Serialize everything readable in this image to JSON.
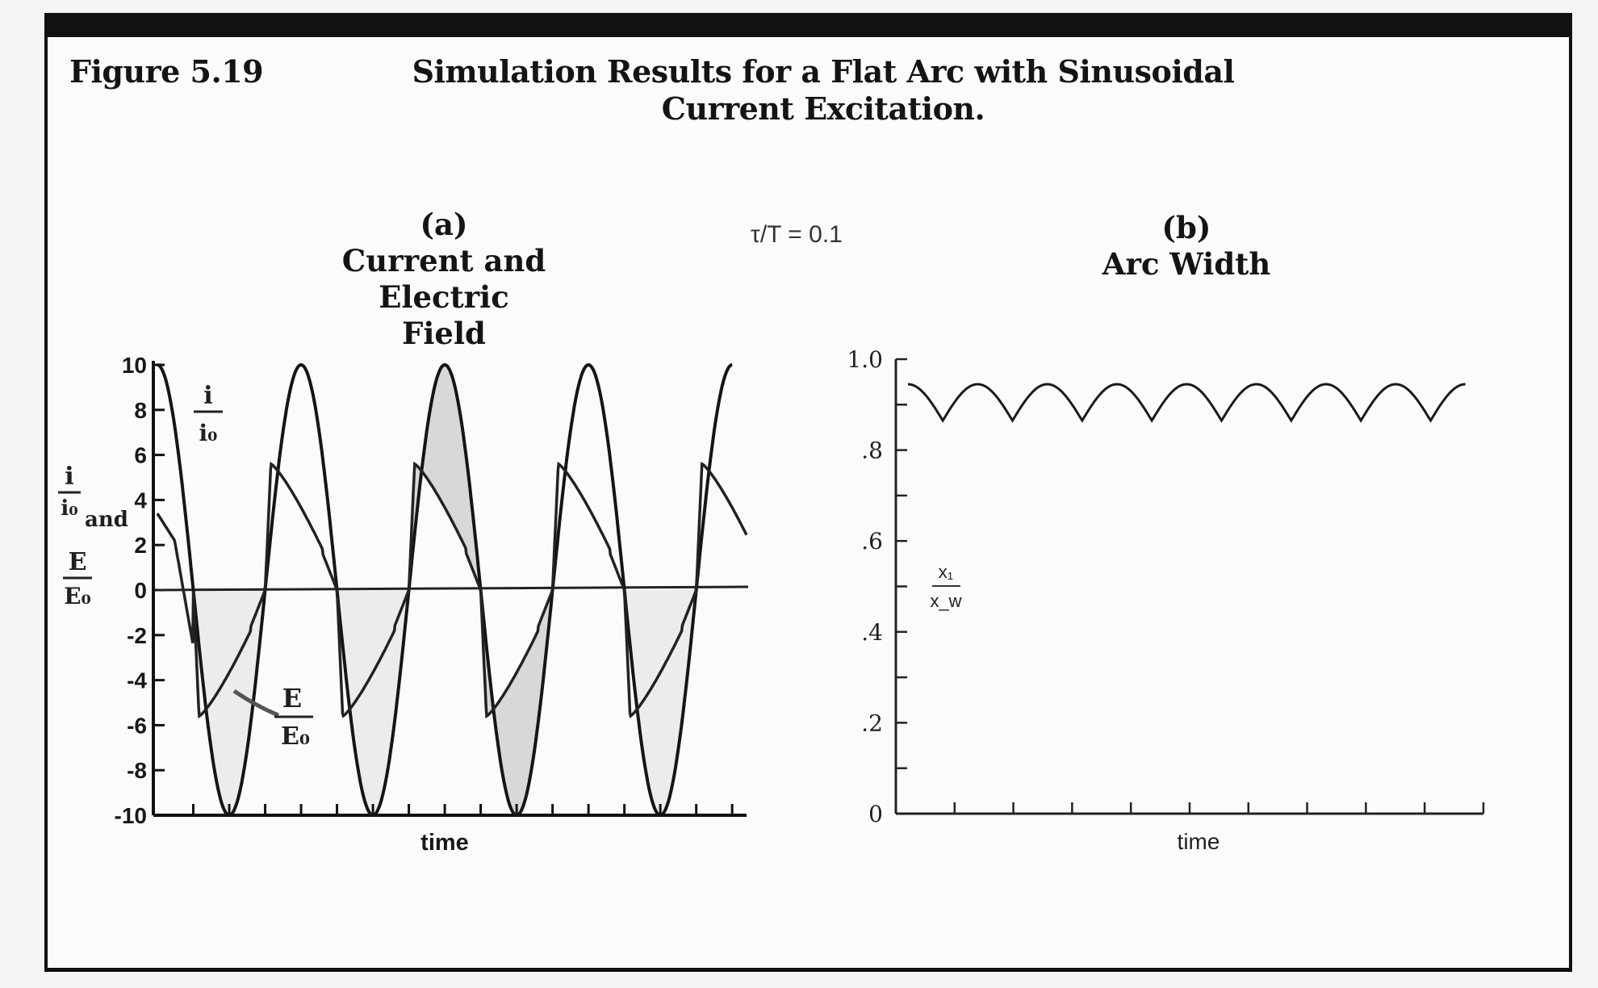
{
  "figure": {
    "label": "Figure 5.19",
    "title_line1": "Simulation Results for a Flat Arc with Sinusoidal",
    "title_line2": "Current Excitation.",
    "parameter": "τ/T = 0.1"
  },
  "chart_data": [
    {
      "panel": "(a)",
      "type": "line",
      "title_line1": "Current and Electric",
      "title_line2": "Field",
      "xlabel": "time",
      "ylabel": {
        "lines": [
          "i",
          "i₀",
          "and",
          "E",
          "E₀"
        ]
      },
      "ylim": [
        -10,
        10
      ],
      "yticks": [
        10,
        8,
        6,
        4,
        2,
        0,
        -2,
        -4,
        -6,
        -8,
        -10
      ],
      "ytick_labels": [
        "10",
        "8",
        "6",
        "4",
        "2",
        "0",
        "-2",
        "-4",
        "-6",
        "-8",
        "-10"
      ],
      "xlim": [
        0,
        2.05
      ],
      "series": [
        {
          "name": "i/i₀",
          "label_num": "i",
          "label_den": "i₀",
          "shape": "sinusoid",
          "amplitude": 10,
          "period": 0.5,
          "x": [
            0,
            0.125,
            0.25,
            0.375,
            0.5,
            0.625,
            0.75,
            0.875,
            1.0,
            1.125,
            1.25,
            1.375,
            1.5,
            1.625,
            1.75,
            1.875,
            2.0
          ],
          "y": [
            10,
            0,
            -10,
            0,
            10,
            0,
            -10,
            0,
            10,
            0,
            -10,
            0,
            10,
            0,
            -10,
            0,
            10
          ]
        },
        {
          "name": "E/E₀",
          "label_num": "E",
          "label_den": "E₀",
          "shape": "electric-field",
          "period": 0.5,
          "peak": 5.6,
          "peak_after_zero": 0.02,
          "decay_end": 0.2,
          "drop": 1.8,
          "x": [
            0,
            0.06,
            0.1,
            0.125,
            0.145,
            0.25,
            0.375,
            0.395,
            0.5,
            0.625,
            0.645,
            0.75,
            0.875,
            0.895,
            1.0,
            1.125,
            1.145,
            1.25,
            1.375,
            1.395,
            1.5,
            1.625,
            1.645,
            1.75,
            1.875,
            1.895,
            2.0,
            2.05
          ],
          "y": [
            3.4,
            2.2,
            0,
            -2.5,
            -5.6,
            -4.2,
            -1.2,
            5.6,
            4.2,
            1.2,
            -5.6,
            -4.2,
            -1.2,
            5.6,
            4.2,
            1.2,
            -5.6,
            -4.2,
            -1.2,
            5.6,
            4.2,
            1.2,
            -5.6,
            -4.2,
            -1.2,
            5.6,
            4.6,
            4.6
          ]
        }
      ],
      "shaded_cycles": [
        [
          0.875,
          1.375
        ]
      ]
    },
    {
      "panel": "(b)",
      "type": "line",
      "title_line1": "Arc Width",
      "xlabel": "time",
      "ylabel": {
        "num": "x₁",
        "den": "x_w"
      },
      "ylim": [
        0,
        1.0
      ],
      "yticks": [
        1.0,
        0.8,
        0.6,
        0.4,
        0.2,
        0
      ],
      "ytick_labels": [
        "1.0",
        ".8",
        ".6",
        ".4",
        ".2",
        "0"
      ],
      "xlim": [
        0,
        2.05
      ],
      "series": [
        {
          "name": "x₁/x_w",
          "shape": "rectified-cusps",
          "x": [
            0,
            0.125,
            0.25,
            0.375,
            0.5,
            0.625,
            0.75,
            0.875,
            1.0,
            1.125,
            1.25,
            1.375,
            1.5,
            1.625,
            1.75,
            1.875,
            2.0
          ],
          "y": [
            0.945,
            0.865,
            0.945,
            0.865,
            0.945,
            0.865,
            0.945,
            0.865,
            0.945,
            0.865,
            0.945,
            0.865,
            0.945,
            0.865,
            0.945,
            0.865,
            0.945
          ]
        }
      ]
    }
  ]
}
